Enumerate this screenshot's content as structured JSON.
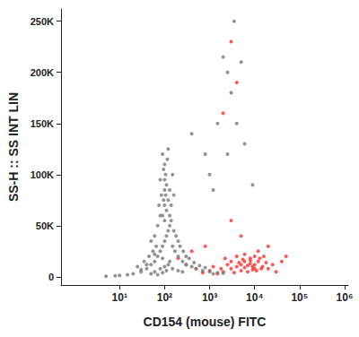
{
  "chart_data": {
    "type": "scatter",
    "x_label": "CD154 (mouse) FITC",
    "y_label": "SS-H :: SS INT LIN",
    "log": "x",
    "grid": false,
    "xlim": [
      0.5,
      1200000
    ],
    "xticks": [
      {
        "value": 10,
        "label": "10¹"
      },
      {
        "value": 100,
        "label": "10²"
      },
      {
        "value": 1000,
        "label": "10³"
      },
      {
        "value": 10000,
        "label": "10⁴"
      },
      {
        "value": 100000,
        "label": "10⁵"
      },
      {
        "value": 1000000,
        "label": "10⁶"
      }
    ],
    "ylim": [
      -8000,
      262000
    ],
    "yticks": [
      0,
      {
        "value": 50000,
        "label": "50K"
      },
      {
        "value": 100000,
        "label": "100K"
      },
      {
        "value": 150000,
        "label": "150K"
      },
      {
        "value": 200000,
        "label": "200K"
      },
      {
        "value": 250000,
        "label": "250K"
      }
    ],
    "series": [
      {
        "color": "#ff3b3b",
        "points": [
          [
            1500,
            3000
          ],
          [
            2000,
            5000
          ],
          [
            3000,
            8000
          ],
          [
            4000,
            10000
          ],
          [
            5000,
            12000
          ],
          [
            6000,
            9000
          ],
          [
            7000,
            11000
          ],
          [
            8000,
            13000
          ],
          [
            9000,
            10000
          ],
          [
            10000,
            12000
          ],
          [
            12000,
            15000
          ],
          [
            15000,
            10000
          ],
          [
            20000,
            8000
          ],
          [
            25000,
            12000
          ],
          [
            30000,
            5000
          ],
          [
            4000,
            20000
          ],
          [
            6000,
            22000
          ],
          [
            8000,
            18000
          ],
          [
            10000,
            20000
          ],
          [
            12000,
            25000
          ],
          [
            3000,
            15000
          ],
          [
            2500,
            12000
          ],
          [
            5000,
            6000
          ],
          [
            7000,
            5000
          ],
          [
            9000,
            7000
          ],
          [
            11000,
            6000
          ],
          [
            14000,
            8000
          ],
          [
            18000,
            14000
          ],
          [
            3500,
            4000
          ],
          [
            1800,
            8000
          ],
          [
            2200,
            18000
          ],
          [
            6000,
            15000
          ],
          [
            8000,
            16000
          ],
          [
            10000,
            8000
          ],
          [
            13000,
            18000
          ],
          [
            16000,
            20000
          ],
          [
            4500,
            14000
          ],
          [
            5500,
            17000
          ],
          [
            700,
            4000
          ],
          [
            1000,
            6000
          ],
          [
            1200,
            10000
          ],
          [
            500,
            8000
          ],
          [
            300,
            12000
          ],
          [
            200,
            18000
          ],
          [
            400,
            25000
          ],
          [
            800,
            30000
          ],
          [
            40000,
            15000
          ],
          [
            50000,
            20000
          ],
          [
            20000,
            30000
          ],
          [
            5000,
            40000
          ],
          [
            3000,
            55000
          ],
          [
            2000,
            160000
          ],
          [
            4000,
            190000
          ],
          [
            3000,
            230000
          ]
        ]
      },
      {
        "color": "#7f7f7f",
        "points": [
          [
            30,
            5000
          ],
          [
            40,
            8000
          ],
          [
            50,
            12000
          ],
          [
            60,
            15000
          ],
          [
            70,
            20000
          ],
          [
            80,
            25000
          ],
          [
            90,
            30000
          ],
          [
            100,
            35000
          ],
          [
            110,
            40000
          ],
          [
            120,
            45000
          ],
          [
            130,
            50000
          ],
          [
            100,
            55000
          ],
          [
            90,
            60000
          ],
          [
            110,
            65000
          ],
          [
            100,
            70000
          ],
          [
            95,
            75000
          ],
          [
            105,
            80000
          ],
          [
            100,
            85000
          ],
          [
            110,
            90000
          ],
          [
            100,
            95000
          ],
          [
            105,
            100000
          ],
          [
            95,
            105000
          ],
          [
            100,
            110000
          ],
          [
            115,
            115000
          ],
          [
            90,
            120000
          ],
          [
            60,
            40000
          ],
          [
            70,
            50000
          ],
          [
            80,
            60000
          ],
          [
            75,
            70000
          ],
          [
            85,
            80000
          ],
          [
            150,
            30000
          ],
          [
            170,
            25000
          ],
          [
            200,
            20000
          ],
          [
            250,
            15000
          ],
          [
            300,
            12000
          ],
          [
            400,
            10000
          ],
          [
            500,
            8000
          ],
          [
            700,
            6000
          ],
          [
            1000,
            5000
          ],
          [
            1500,
            4000
          ],
          [
            20,
            3000
          ],
          [
            15,
            2000
          ],
          [
            10,
            1500
          ],
          [
            8,
            1000
          ],
          [
            5,
            500
          ],
          [
            25,
            10000
          ],
          [
            35,
            15000
          ],
          [
            45,
            20000
          ],
          [
            55,
            25000
          ],
          [
            65,
            30000
          ],
          [
            130,
            60000
          ],
          [
            140,
            55000
          ],
          [
            160,
            45000
          ],
          [
            180,
            40000
          ],
          [
            200,
            35000
          ],
          [
            220,
            30000
          ],
          [
            260,
            25000
          ],
          [
            300,
            20000
          ],
          [
            350,
            18000
          ],
          [
            450,
            14000
          ],
          [
            600,
            11000
          ],
          [
            800,
            9000
          ],
          [
            120,
            75000
          ],
          [
            130,
            85000
          ],
          [
            140,
            70000
          ],
          [
            60,
            5000
          ],
          [
            80,
            8000
          ],
          [
            100,
            10000
          ],
          [
            120,
            12000
          ],
          [
            150,
            8000
          ],
          [
            200,
            6000
          ],
          [
            250,
            5000
          ],
          [
            50,
            3000
          ],
          [
            70,
            2000
          ],
          [
            90,
            4000
          ],
          [
            110,
            6000
          ],
          [
            130,
            15000
          ],
          [
            90,
            18000
          ],
          [
            60,
            22000
          ],
          [
            40,
            12000
          ],
          [
            30,
            7000
          ],
          [
            1200,
            3000
          ],
          [
            2000,
            3500
          ],
          [
            150,
            100000
          ],
          [
            80,
            95000
          ],
          [
            120,
            125000
          ],
          [
            160,
            80000
          ],
          [
            50,
            35000
          ],
          [
            400,
            140000
          ],
          [
            800,
            120000
          ],
          [
            1500,
            150000
          ],
          [
            2500,
            200000
          ],
          [
            3000,
            180000
          ],
          [
            4000,
            150000
          ],
          [
            2000,
            215000
          ],
          [
            5000,
            210000
          ],
          [
            3500,
            250000
          ],
          [
            2500,
            120000
          ],
          [
            6000,
            130000
          ],
          [
            1000,
            100000
          ],
          [
            1200,
            85000
          ],
          [
            9000,
            90000
          ]
        ]
      }
    ]
  }
}
